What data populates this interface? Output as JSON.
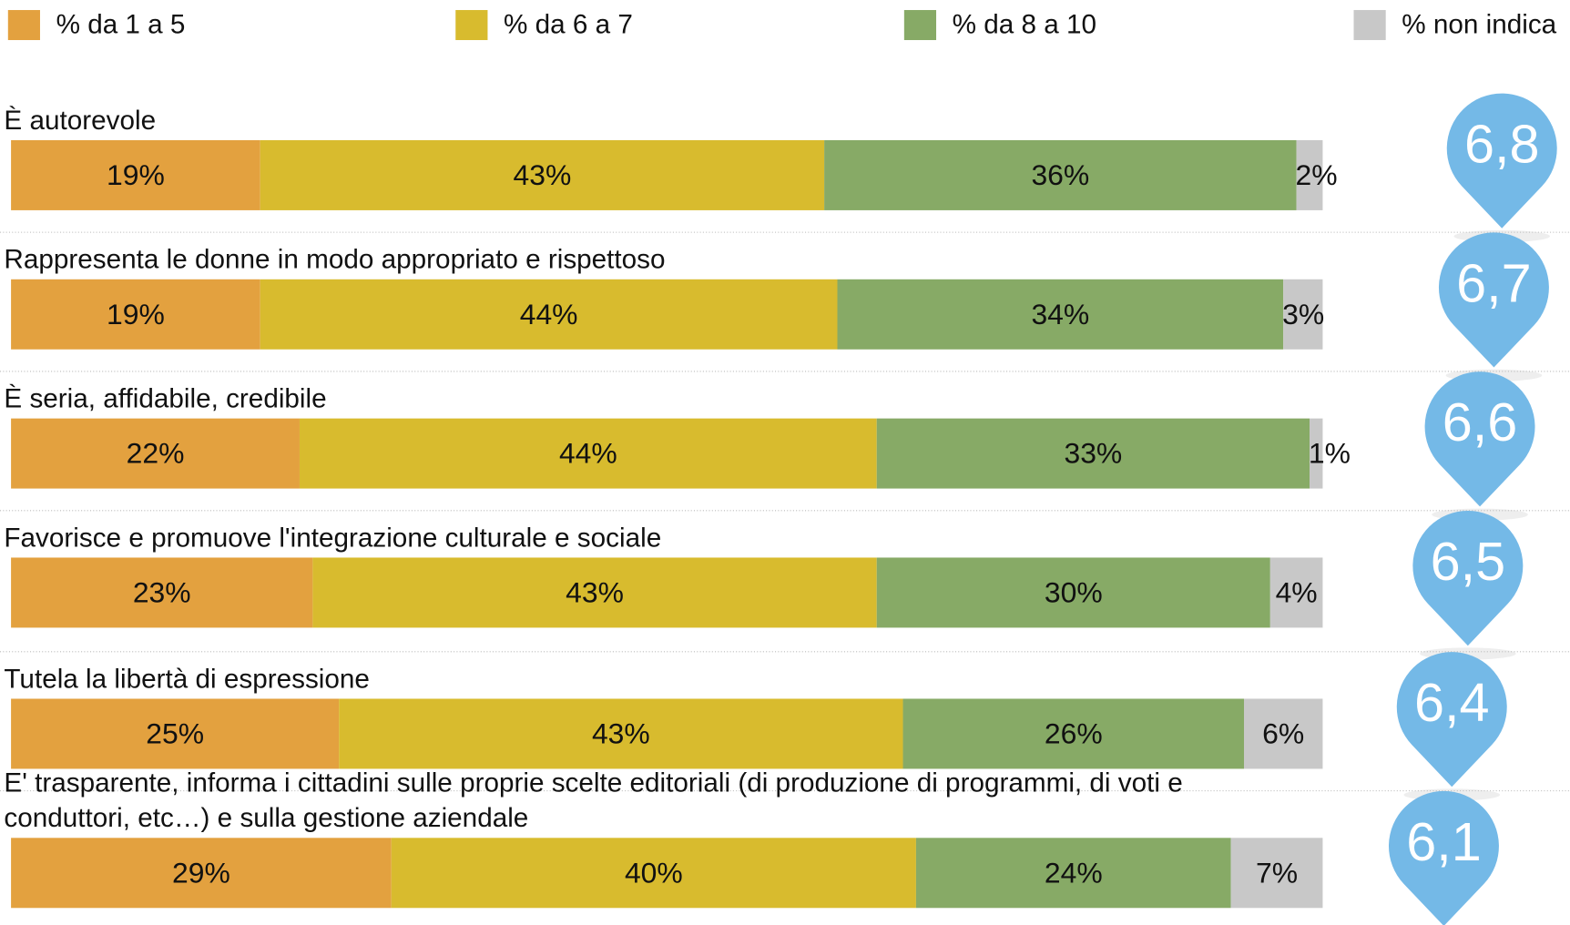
{
  "chart_data": {
    "type": "stacked-bar",
    "categories": [
      "È autorevole",
      "Rappresenta le donne in modo appropriato e rispettoso",
      "È seria, affidabile, credibile",
      "Favorisce e promuove l'integrazione culturale e sociale",
      "Tutela la libertà di espressione",
      "E' trasparente, informa i cittadini sulle proprie scelte editoriali (di produzione di programmi, di voti e conduttori, etc…) e sulla gestione aziendale"
    ],
    "series": [
      {
        "name": "% da 1 a 5",
        "color": "#e3a13f",
        "values": [
          19,
          19,
          22,
          23,
          25,
          29
        ],
        "value_labels": [
          "19%",
          "19%",
          "22%",
          "23%",
          "25%",
          "29%"
        ]
      },
      {
        "name": "% da 6 a 7",
        "color": "#d8bb2e",
        "values": [
          43,
          44,
          44,
          43,
          43,
          40
        ],
        "value_labels": [
          "43%",
          "44%",
          "44%",
          "43%",
          "43%",
          "40%"
        ]
      },
      {
        "name": "% da 8 a 10",
        "color": "#87aa66",
        "values": [
          36,
          34,
          33,
          30,
          26,
          24
        ],
        "value_labels": [
          "36%",
          "34%",
          "33%",
          "30%",
          "26%",
          "24%"
        ]
      },
      {
        "name": "% non indica",
        "color": "#c8c8c8",
        "values": [
          2,
          3,
          1,
          4,
          6,
          7
        ],
        "value_labels": [
          "2%",
          "3%",
          "1%",
          "4%",
          "6%",
          "7%"
        ]
      }
    ],
    "scores": [
      6.8,
      6.7,
      6.6,
      6.5,
      6.4,
      6.1
    ],
    "score_labels": [
      "6,8",
      "6,7",
      "6,6",
      "6,5",
      "6,4",
      "6,1"
    ],
    "score_color": "#74b9e7"
  }
}
